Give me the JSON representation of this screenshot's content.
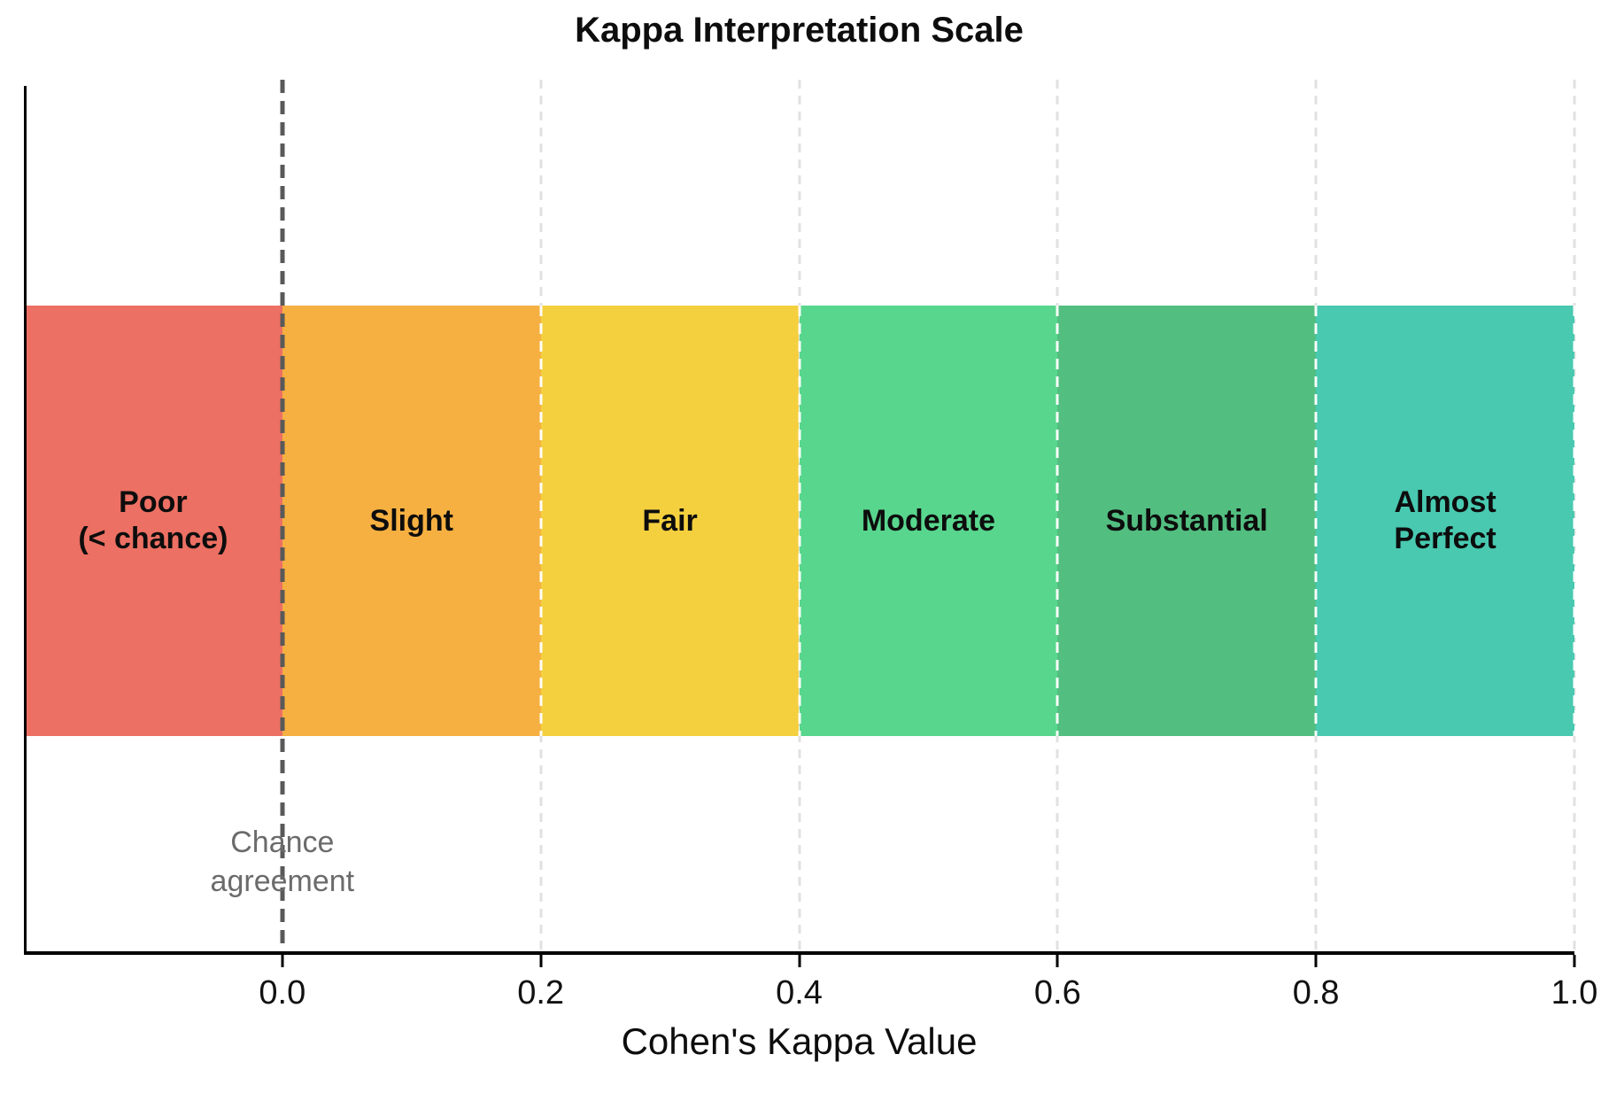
{
  "chart_data": {
    "type": "bar",
    "subtype": "horizontal-interpretation-scale-bands",
    "title": "Kappa Interpretation Scale",
    "xlabel": "Cohen's Kappa Value",
    "xlim": [
      -0.2,
      1.0
    ],
    "xticks": [
      0.0,
      0.2,
      0.4,
      0.6,
      0.8,
      1.0
    ],
    "xtick_labels": [
      "0.0",
      "0.2",
      "0.4",
      "0.6",
      "0.8",
      "1.0"
    ],
    "grid": "vertical-dashed",
    "legend": "none",
    "bands": [
      {
        "label": "Poor\n(< chance)",
        "xmin": -0.2,
        "xmax": 0.0,
        "color": "#EC7063"
      },
      {
        "label": "Slight",
        "xmin": 0.0,
        "xmax": 0.2,
        "color": "#F5B041"
      },
      {
        "label": "Fair",
        "xmin": 0.2,
        "xmax": 0.4,
        "color": "#F4D03F"
      },
      {
        "label": "Moderate",
        "xmin": 0.4,
        "xmax": 0.6,
        "color": "#58D68D"
      },
      {
        "label": "Substantial",
        "xmin": 0.6,
        "xmax": 0.8,
        "color": "#52BE80"
      },
      {
        "label": "Almost\nPerfect",
        "xmin": 0.8,
        "xmax": 1.0,
        "color": "#48C9B0"
      }
    ],
    "annotations": [
      {
        "type": "vline-dashed",
        "x": 0.0,
        "text": "Chance\nagreement",
        "line_color": "#595959",
        "text_color": "#6b6b6b"
      }
    ],
    "colors": {
      "spine": "#000000",
      "gridline": "#e1e1e1",
      "band_separator": "#ffffff",
      "title_text": "#0d0d0d",
      "tick_text": "#111111"
    }
  }
}
